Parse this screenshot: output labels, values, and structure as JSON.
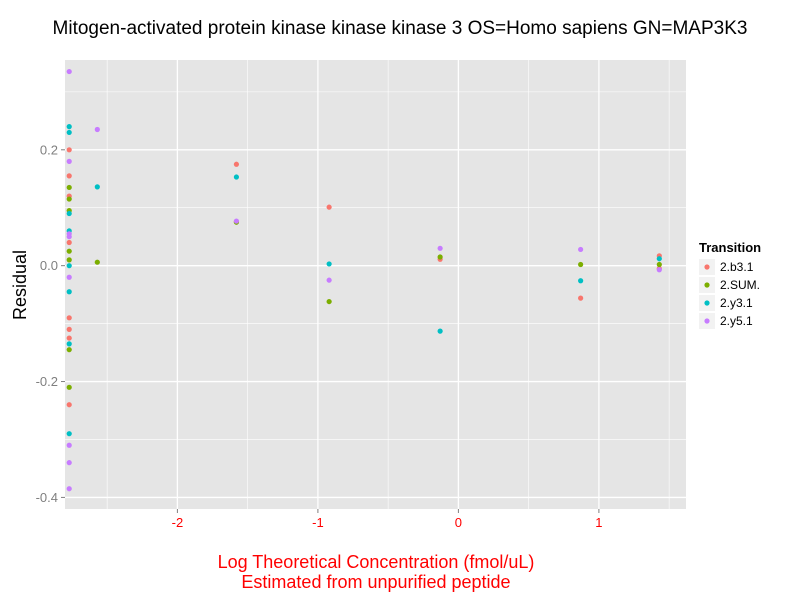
{
  "chart_data": {
    "type": "scatter",
    "title": "Mitogen-activated protein kinase kinase kinase 3 OS=Homo sapiens GN=MAP3K3",
    "xlabel_lines": [
      "Log Theoretical Concentration (fmol/uL)",
      "Estimated from unpurified peptide"
    ],
    "ylabel": "Residual",
    "xlim": [
      -2.8,
      1.62
    ],
    "ylim": [
      -0.42,
      0.355
    ],
    "x_ticks": [
      -2,
      -1,
      0,
      1
    ],
    "x_tick_labels": [
      "-2",
      "-1",
      "0",
      "1"
    ],
    "y_ticks": [
      -0.4,
      -0.2,
      0.0,
      0.2
    ],
    "y_tick_labels": [
      "-0.4",
      "-0.2",
      "0.0",
      "0.2"
    ],
    "grid": true,
    "legend": {
      "title": "Transition",
      "position": "right"
    },
    "colors": {
      "panel": "#e5e5e5",
      "grid": "#ffffff"
    },
    "series": [
      {
        "name": "2.b3.1",
        "color": "#f8766d",
        "points": [
          [
            -2.77,
            0.155
          ],
          [
            -2.77,
            0.12
          ],
          [
            -2.77,
            -0.09
          ],
          [
            -2.77,
            -0.11
          ],
          [
            -2.77,
            -0.125
          ],
          [
            -2.77,
            -0.24
          ],
          [
            -2.77,
            0.04
          ],
          [
            -2.77,
            0.2
          ],
          [
            -1.58,
            0.175
          ],
          [
            -1.58,
            0.076
          ],
          [
            -0.92,
            0.101
          ],
          [
            -0.13,
            0.011
          ],
          [
            0.87,
            -0.056
          ],
          [
            1.43,
            0.017
          ],
          [
            1.43,
            -0.005
          ]
        ]
      },
      {
        "name": "2.SUM.",
        "color": "#7cae00",
        "points": [
          [
            -2.77,
            0.135
          ],
          [
            -2.77,
            0.115
          ],
          [
            -2.77,
            0.095
          ],
          [
            -2.77,
            0.01
          ],
          [
            -2.77,
            -0.145
          ],
          [
            -2.77,
            -0.21
          ],
          [
            -2.77,
            0.025
          ],
          [
            -2.57,
            0.006
          ],
          [
            -1.58,
            0.075
          ],
          [
            -0.92,
            -0.062
          ],
          [
            -0.13,
            0.015
          ],
          [
            0.87,
            0.002
          ],
          [
            1.43,
            0.002
          ]
        ]
      },
      {
        "name": "2.y3.1",
        "color": "#00bfc4",
        "points": [
          [
            -2.77,
            0.24
          ],
          [
            -2.77,
            0.23
          ],
          [
            -2.77,
            0.09
          ],
          [
            -2.77,
            0.06
          ],
          [
            -2.77,
            0.0
          ],
          [
            -2.77,
            -0.045
          ],
          [
            -2.77,
            -0.135
          ],
          [
            -2.77,
            -0.29
          ],
          [
            -2.57,
            0.136
          ],
          [
            -1.58,
            0.153
          ],
          [
            -0.92,
            0.003
          ],
          [
            -0.13,
            -0.113
          ],
          [
            0.87,
            -0.026
          ],
          [
            1.43,
            0.012
          ]
        ]
      },
      {
        "name": "2.y5.1",
        "color": "#c77cff",
        "points": [
          [
            -2.77,
            0.335
          ],
          [
            -2.77,
            0.18
          ],
          [
            -2.77,
            0.055
          ],
          [
            -2.77,
            0.05
          ],
          [
            -2.77,
            -0.02
          ],
          [
            -2.77,
            -0.31
          ],
          [
            -2.77,
            -0.34
          ],
          [
            -2.77,
            -0.385
          ],
          [
            -2.57,
            0.235
          ],
          [
            -1.58,
            0.077
          ],
          [
            -0.92,
            -0.025
          ],
          [
            -0.13,
            0.03
          ],
          [
            0.87,
            0.028
          ],
          [
            1.43,
            -0.007
          ]
        ]
      }
    ]
  }
}
